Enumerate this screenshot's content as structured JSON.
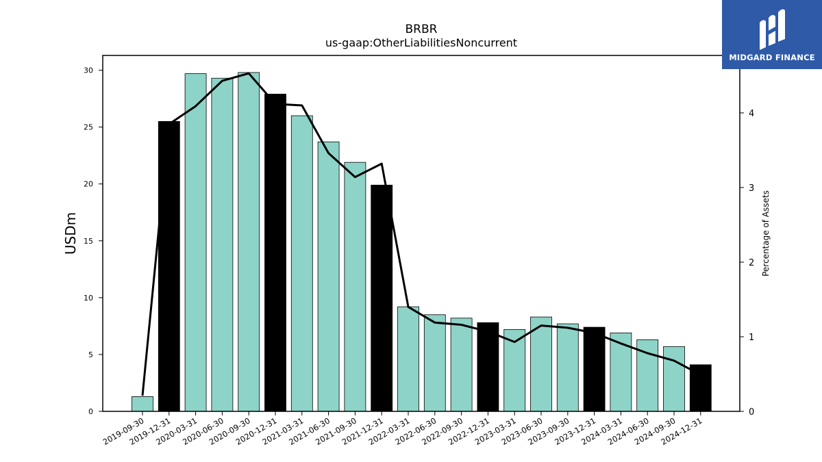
{
  "brand": {
    "name": "MIDGARD FINANCE",
    "color": "#2e5aa8"
  },
  "chart_data": {
    "type": "bar",
    "title": "BRBR",
    "subtitle": "us-gaap:OtherLiabilitiesNoncurrent",
    "ylabel": "USDm",
    "y2label": "Percentage of Assets",
    "ylim": [
      0,
      31.3
    ],
    "y2lim": [
      0,
      4.77
    ],
    "yticks": [
      0,
      5,
      10,
      15,
      20,
      25,
      30
    ],
    "y2ticks": [
      0,
      1,
      2,
      3,
      4
    ],
    "categories": [
      "2019-09-30",
      "2019-12-31",
      "2020-03-31",
      "2020-06-30",
      "2020-09-30",
      "2020-12-31",
      "2021-03-31",
      "2021-06-30",
      "2021-09-30",
      "2021-12-31",
      "2022-03-31",
      "2022-06-30",
      "2022-09-30",
      "2022-12-31",
      "2023-03-31",
      "2023-06-30",
      "2023-09-30",
      "2023-12-31",
      "2024-03-31",
      "2024-06-30",
      "2024-09-30",
      "2024-12-31"
    ],
    "series": [
      {
        "values": [
          1.3,
          25.5,
          29.7,
          29.3,
          29.8,
          27.9,
          26.0,
          23.7,
          21.9,
          19.9,
          9.2,
          8.5,
          8.2,
          7.8,
          7.2,
          8.3,
          7.7,
          7.4,
          6.9,
          6.3,
          5.7,
          4.1
        ]
      },
      {
        "values": [
          0.21,
          3.85,
          4.09,
          4.43,
          4.53,
          4.12,
          4.1,
          3.46,
          3.14,
          3.32,
          1.4,
          1.19,
          1.16,
          1.07,
          0.93,
          1.15,
          1.12,
          1.05,
          0.91,
          0.78,
          0.68,
          0.49
        ]
      }
    ],
    "colors": {
      "bar_regular": "#8ed3c7",
      "bar_year_end": "#000000",
      "line": "#000000"
    },
    "highlight_rule": "year-end (12-31) bars drawn in black",
    "grid": false
  }
}
